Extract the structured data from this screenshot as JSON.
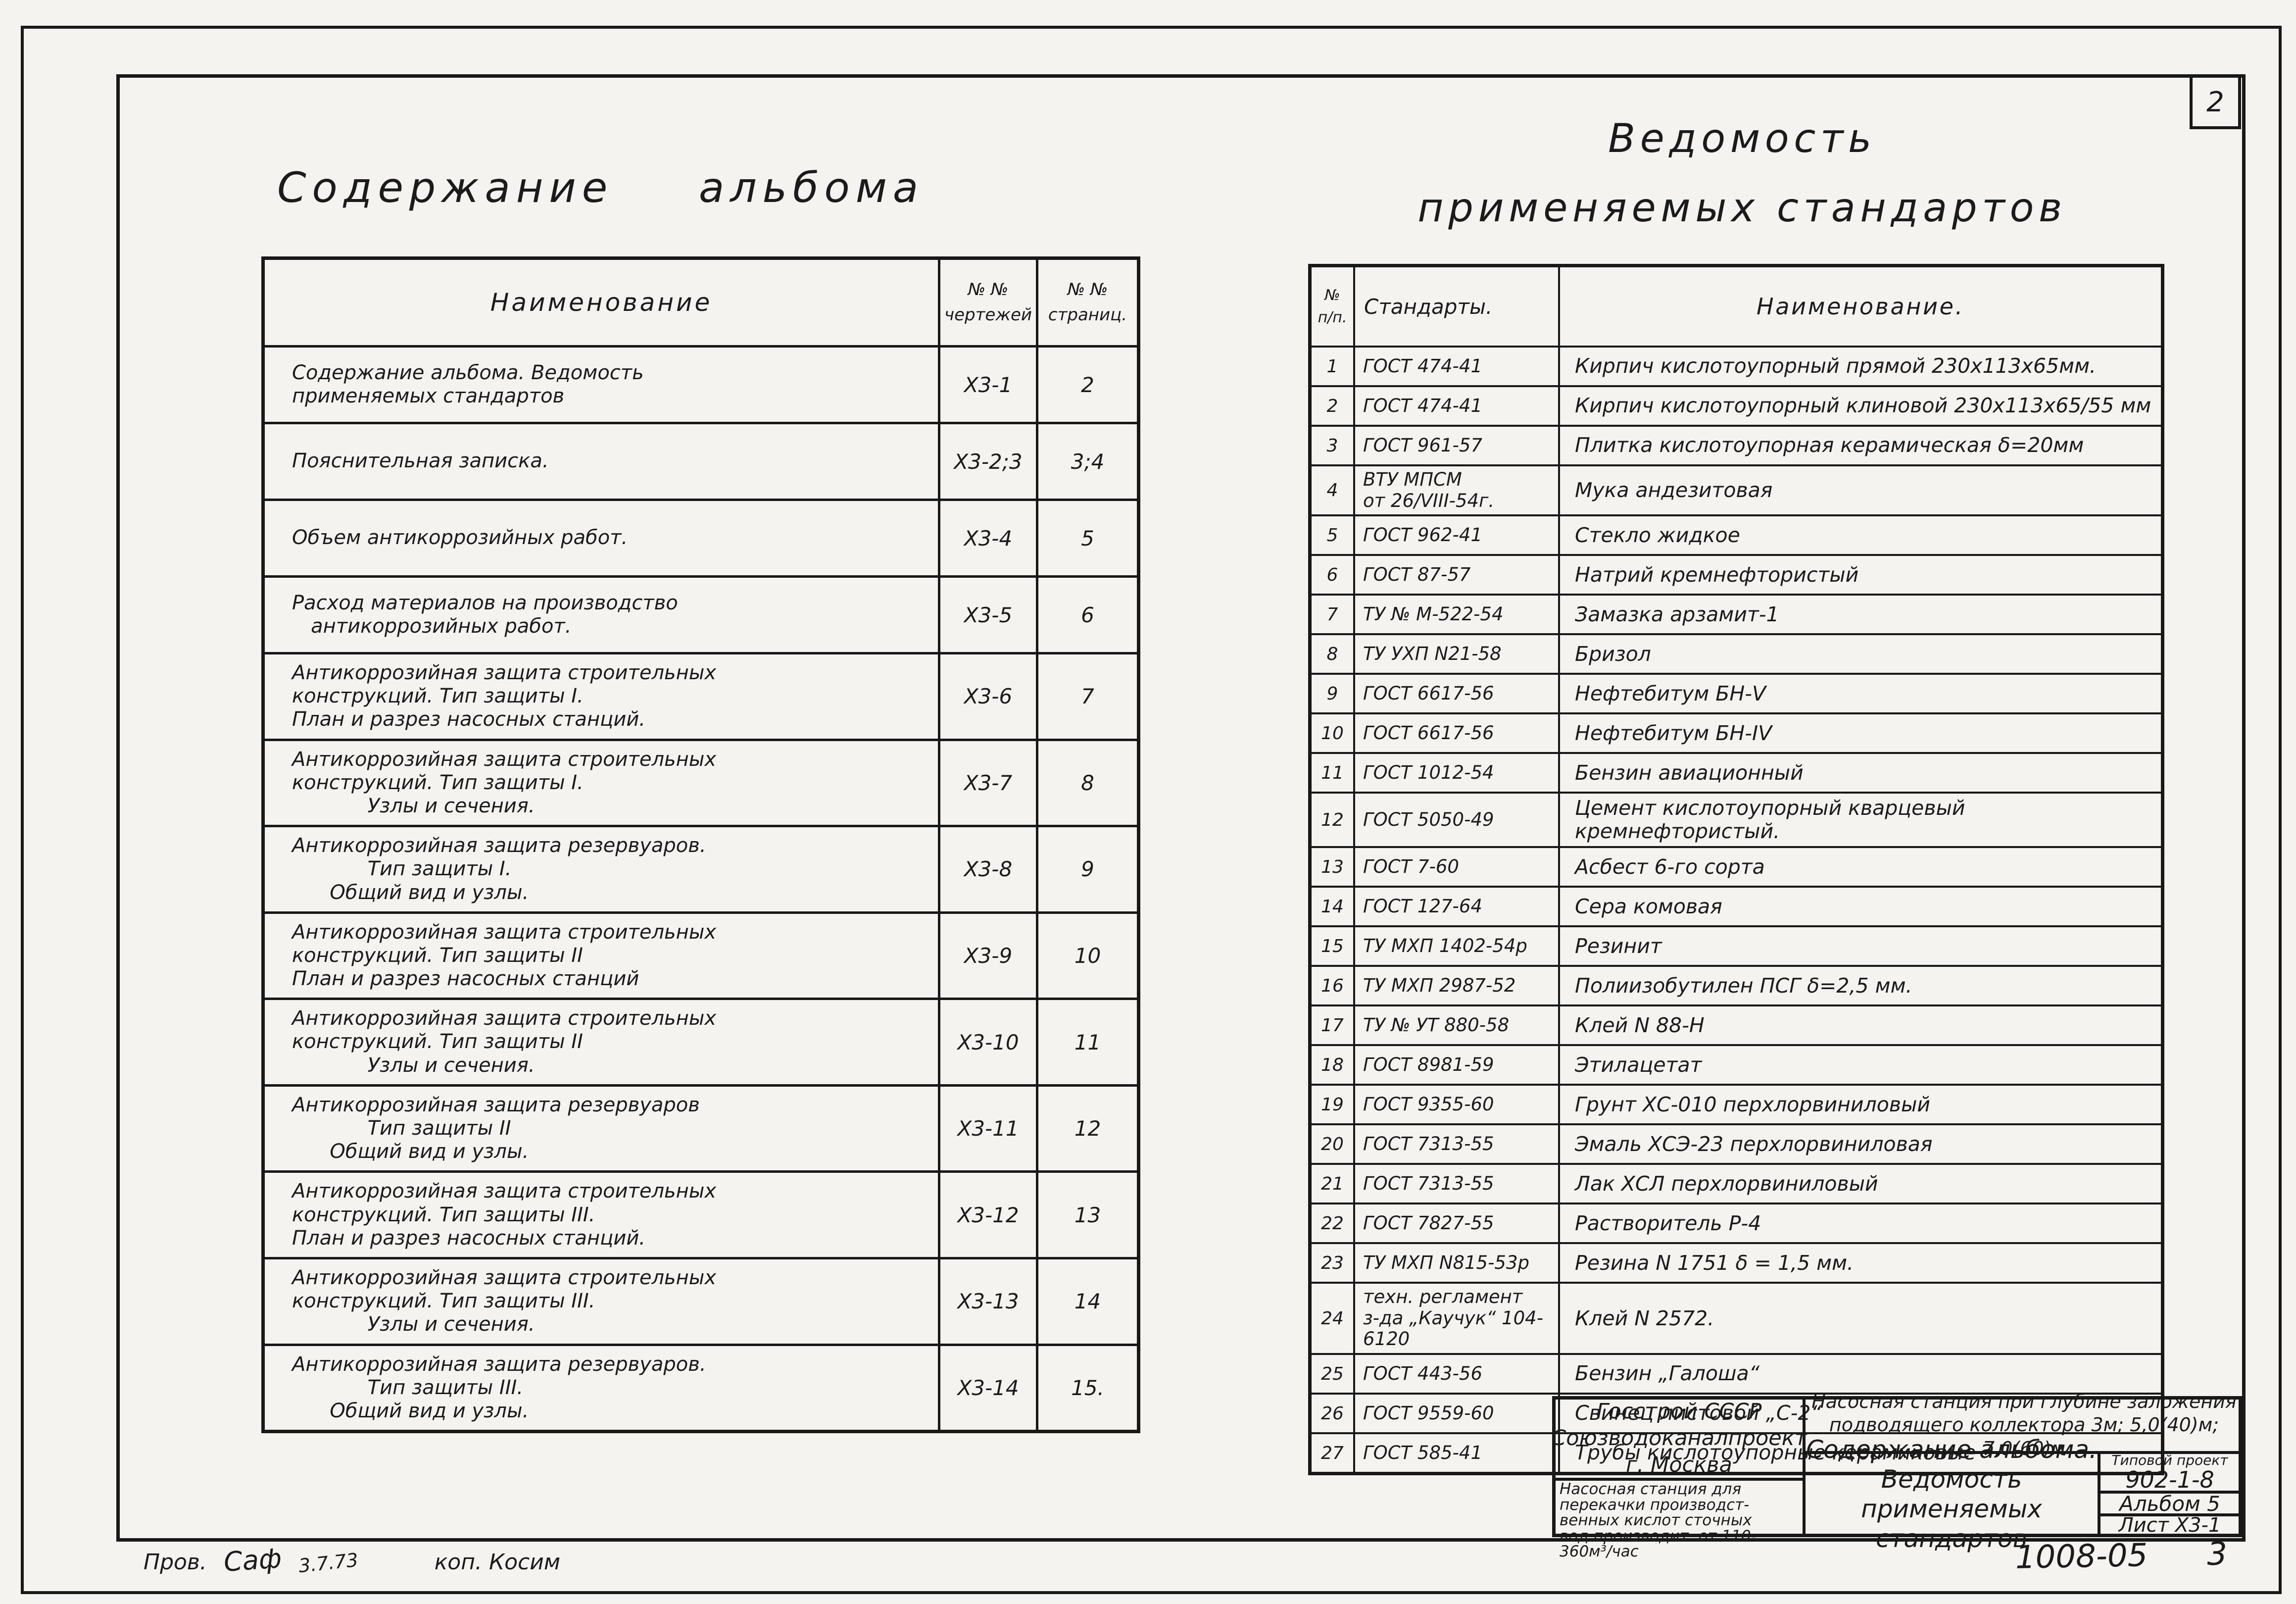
{
  "page": {
    "number": "2",
    "doc_number": "1008-05",
    "sheet_hand_number": "3"
  },
  "left_table": {
    "title": "Содержание альбома",
    "headers": {
      "name": "Наименование",
      "sheets": "№ №\nчертежей",
      "pages": "№ №\nстраниц."
    },
    "rows": [
      {
        "name": "Содержание альбома. Ведомость\nприменяемых стандартов",
        "sheets": "Х3-1",
        "pages": "2"
      },
      {
        "name": "Пояснительная записка.",
        "sheets": "Х3-2;3",
        "pages": "3;4"
      },
      {
        "name": "Объем антикоррозийных работ.",
        "sheets": "Х3-4",
        "pages": "5"
      },
      {
        "name": "Расход материалов на производство\n   антикоррозийных работ.",
        "sheets": "Х3-5",
        "pages": "6"
      },
      {
        "name": "Антикоррозийная защита строительных\nконструкций. Тип защиты I.\nПлан и разрез насосных станций.",
        "sheets": "Х3-6",
        "pages": "7"
      },
      {
        "name": "Антикоррозийная защита строительных\nконструкций. Тип защиты I.\n            Узлы и сечения.",
        "sheets": "Х3-7",
        "pages": "8"
      },
      {
        "name": "Антикоррозийная защита резервуаров.\n            Тип защиты I.\n      Общий вид и узлы.",
        "sheets": "Х3-8",
        "pages": "9"
      },
      {
        "name": "Антикоррозийная защита строительных\nконструкций. Тип защиты II\nПлан и разрез насосных станций",
        "sheets": "Х3-9",
        "pages": "10"
      },
      {
        "name": "Антикоррозийная защита строительных\nконструкций. Тип защиты II\n            Узлы и сечения.",
        "sheets": "Х3-10",
        "pages": "11"
      },
      {
        "name": "Антикоррозийная защита резервуаров\n            Тип защиты II\n      Общий вид и узлы.",
        "sheets": "Х3-11",
        "pages": "12"
      },
      {
        "name": "Антикоррозийная защита строительных\nконструкций. Тип защиты III.\nПлан и разрез насосных станций.",
        "sheets": "Х3-12",
        "pages": "13"
      },
      {
        "name": "Антикоррозийная защита строительных\nконструкций. Тип защиты III.\n            Узлы и сечения.",
        "sheets": "Х3-13",
        "pages": "14"
      },
      {
        "name": "Антикоррозийная защита резервуаров.\n            Тип защиты III.\n      Общий вид и узлы.",
        "sheets": "Х3-14",
        "pages": "15."
      }
    ]
  },
  "right_table": {
    "title": "Ведомость\nприменяемых стандартов",
    "headers": {
      "num": "№\nп/п.",
      "standard": "Стандарты.",
      "name": "Наименование."
    },
    "rows": [
      {
        "num": "1",
        "standard": "ГОСТ 474-41",
        "name": "Кирпич кислотоупорный прямой 230х113х65мм."
      },
      {
        "num": "2",
        "standard": "ГОСТ 474-41",
        "name": "Кирпич кислотоупорный клиновой 230х113х65/55 мм"
      },
      {
        "num": "3",
        "standard": "ГОСТ 961-57",
        "name": "Плитка кислотоупорная керамическая δ=20мм"
      },
      {
        "num": "4",
        "standard": "ВТУ МПСМ\nот 26/VIII-54г.",
        "name": "Мука андезитовая"
      },
      {
        "num": "5",
        "standard": "ГОСТ 962-41",
        "name": "Стекло жидкое"
      },
      {
        "num": "6",
        "standard": "ГОСТ 87-57",
        "name": "Натрий кремнефтористый"
      },
      {
        "num": "7",
        "standard": "ТУ № М-522-54",
        "name": "Замазка арзамит-1"
      },
      {
        "num": "8",
        "standard": "ТУ УХП N21-58",
        "name": "Бризол"
      },
      {
        "num": "9",
        "standard": "ГОСТ 6617-56",
        "name": "Нефтебитум БН-V"
      },
      {
        "num": "10",
        "standard": "ГОСТ 6617-56",
        "name": "Нефтебитум БН-IV"
      },
      {
        "num": "11",
        "standard": "ГОСТ 1012-54",
        "name": "Бензин авиационный"
      },
      {
        "num": "12",
        "standard": "ГОСТ 5050-49",
        "name": "Цемент кислотоупорный кварцевый\n   кремнефтористый."
      },
      {
        "num": "13",
        "standard": "ГОСТ 7-60",
        "name": "Асбест 6-го сорта"
      },
      {
        "num": "14",
        "standard": "ГОСТ 127-64",
        "name": "Сера комовая"
      },
      {
        "num": "15",
        "standard": "ТУ МХП 1402-54р",
        "name": "Резинит"
      },
      {
        "num": "16",
        "standard": "ТУ МХП 2987-52",
        "name": "Полиизобутилен ПСГ δ=2,5 мм."
      },
      {
        "num": "17",
        "standard": "ТУ № УТ 880-58",
        "name": "Клей N 88-Н"
      },
      {
        "num": "18",
        "standard": "ГОСТ 8981-59",
        "name": "Этилацетат"
      },
      {
        "num": "19",
        "standard": "ГОСТ 9355-60",
        "name": "Грунт ХС-010 перхлорвиниловый"
      },
      {
        "num": "20",
        "standard": "ГОСТ 7313-55",
        "name": "Эмаль ХСЭ-23 перхлорвиниловая"
      },
      {
        "num": "21",
        "standard": "ГОСТ 7313-55",
        "name": "Лак ХСЛ перхлорвиниловый"
      },
      {
        "num": "22",
        "standard": "ГОСТ 7827-55",
        "name": "Растворитель Р-4"
      },
      {
        "num": "23",
        "standard": "ТУ МХП N815-53р",
        "name": "Резина N 1751 δ = 1,5 мм."
      },
      {
        "num": "24",
        "standard": "техн. регламент\nз-да „Каучук“ 104-6120",
        "name": "Клей N 2572."
      },
      {
        "num": "25",
        "standard": "ГОСТ 443-56",
        "name": "Бензин „Галоша“"
      },
      {
        "num": "26",
        "standard": "ГОСТ 9559-60",
        "name": "Свинец листовой „С-2“"
      },
      {
        "num": "27",
        "standard": "ГОСТ 585-41",
        "name": "Трубы кислотоупорные керамиковые"
      }
    ]
  },
  "title_block": {
    "org_line1": "Госстрой СССР",
    "org_line2": "Союзводоканалпроект",
    "org_line3": "г. Москва",
    "object_left": "Насосная станция для\nперекачки производст-\nвенных кислот сточных\nвод производит. от 110-360м³/час",
    "object_top": "Насосная станция при глубине заложения\nподводящего коллектора 3м; 5,0(40)м; 7,0(60)м",
    "sheet_title": "Содержание альбома.\nВедомость применяемых\nстандартов",
    "project_type": "Типовой проект",
    "project_code": "902-1-8",
    "album": "Альбом 5",
    "sheet": "Лист Х3-1"
  },
  "footer": {
    "prov_label": "Пров.",
    "prov_signature": "Саф",
    "prov_date": "3.7.73",
    "kop_note": "коп. Косим"
  }
}
